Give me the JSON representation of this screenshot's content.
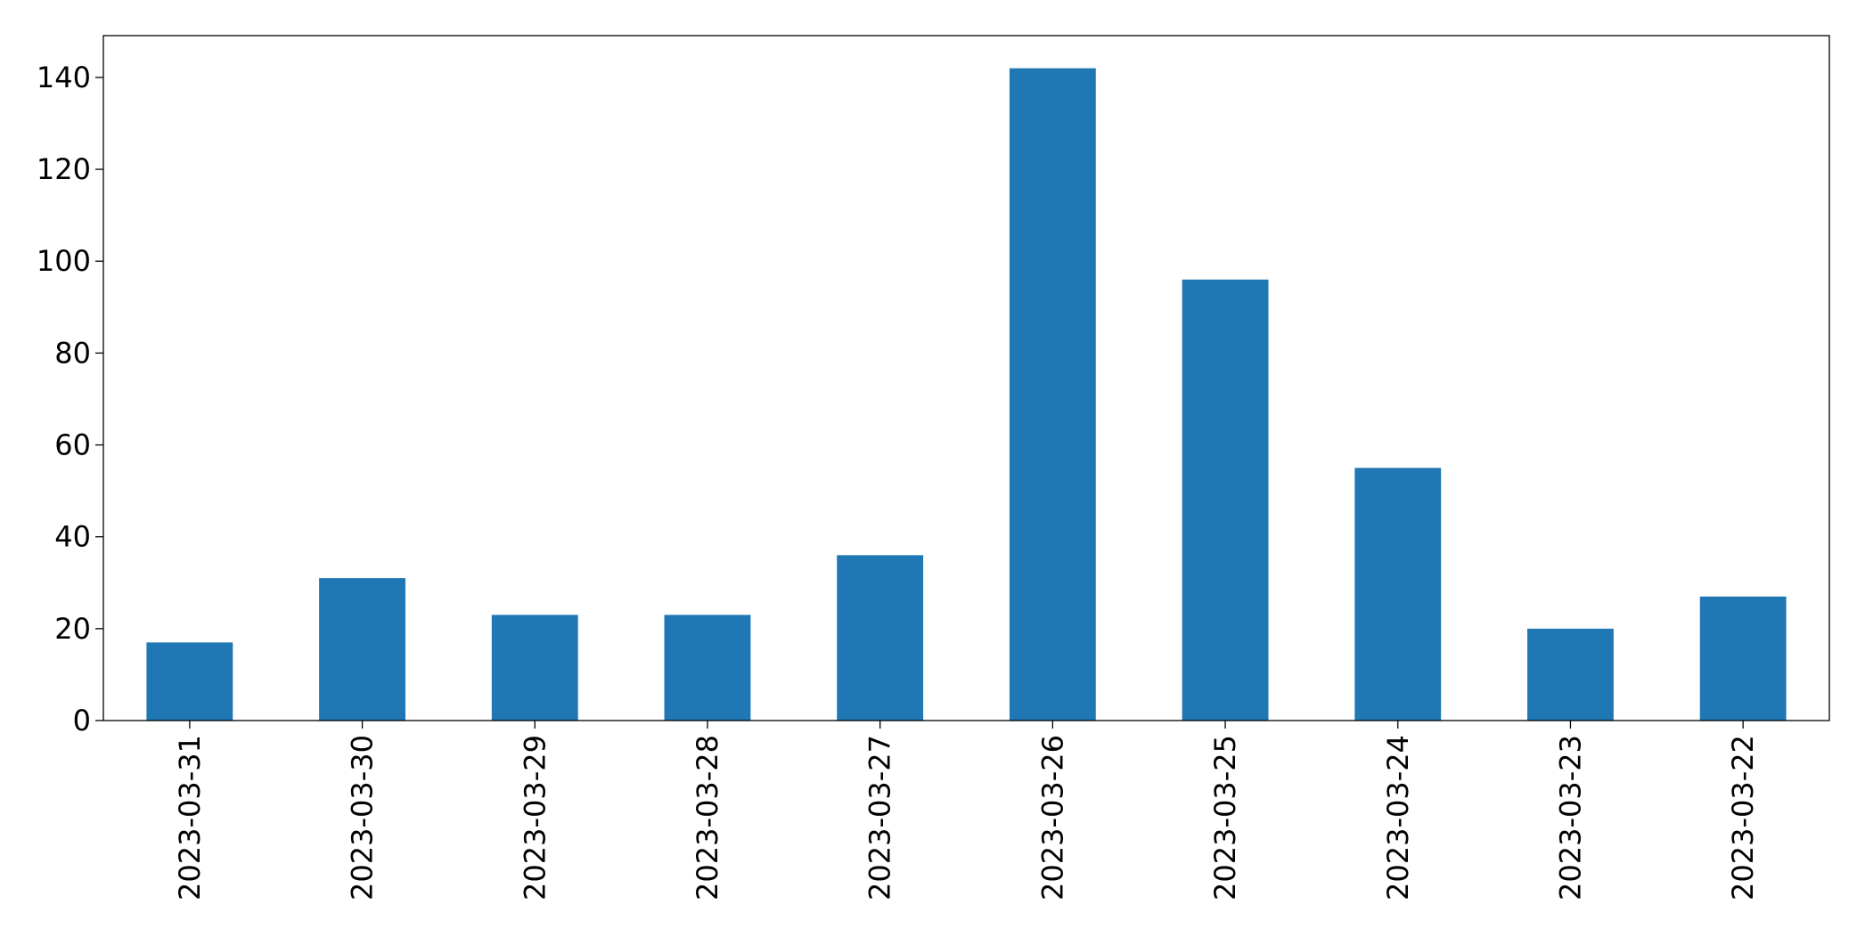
{
  "chart_data": {
    "type": "bar",
    "categories": [
      "2023-03-31",
      "2023-03-30",
      "2023-03-29",
      "2023-03-28",
      "2023-03-27",
      "2023-03-26",
      "2023-03-25",
      "2023-03-24",
      "2023-03-23",
      "2023-03-22"
    ],
    "values": [
      17,
      31,
      23,
      23,
      36,
      142,
      96,
      55,
      20,
      27
    ],
    "color": "#1f77b4",
    "ylim": [
      0,
      149.1
    ],
    "yticks": [
      0,
      20,
      40,
      60,
      80,
      100,
      120,
      140
    ],
    "grid": false
  }
}
